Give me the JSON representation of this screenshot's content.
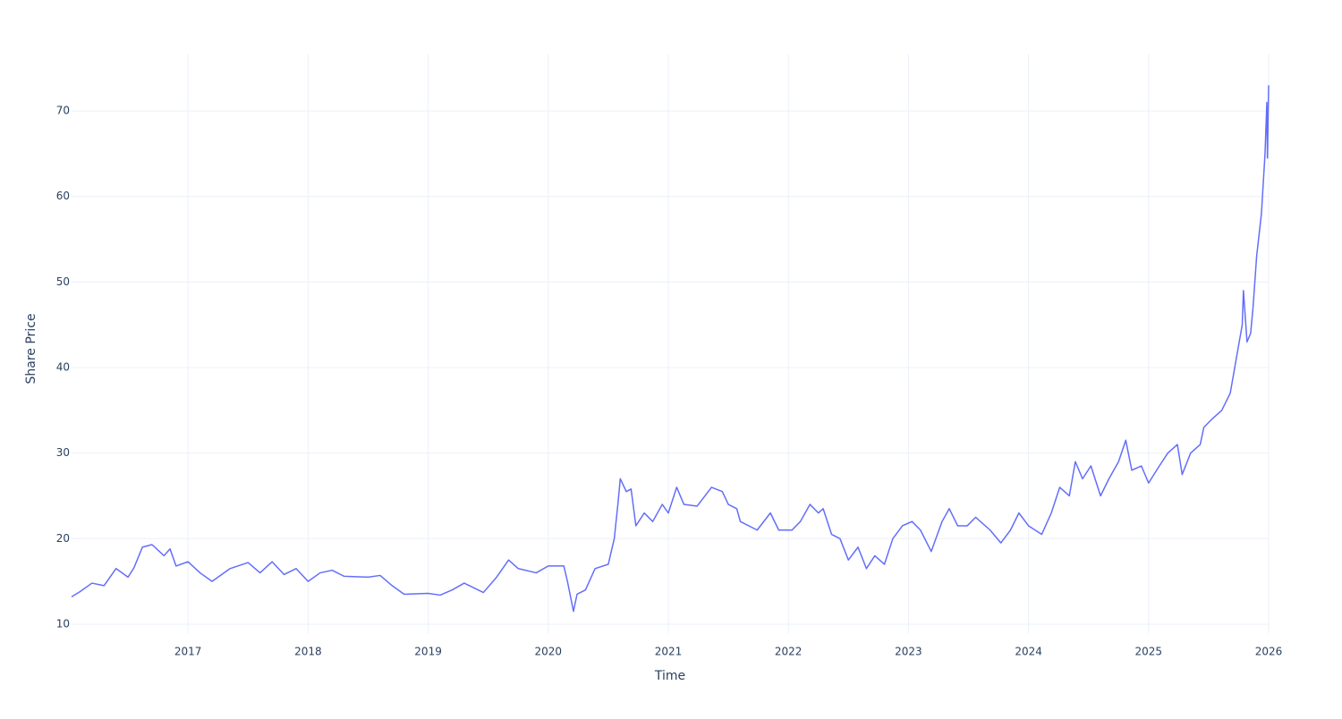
{
  "chart_data": {
    "type": "line",
    "x_label": "Time",
    "y_label": "Share Price",
    "x": [
      2016.03,
      2016.1,
      2016.2,
      2016.3,
      2016.4,
      2016.5,
      2016.55,
      2016.62,
      2016.7,
      2016.8,
      2016.85,
      2016.9,
      2017.0,
      2017.1,
      2017.2,
      2017.35,
      2017.5,
      2017.6,
      2017.7,
      2017.8,
      2017.9,
      2018.0,
      2018.1,
      2018.2,
      2018.3,
      2018.5,
      2018.6,
      2018.7,
      2018.8,
      2019.0,
      2019.1,
      2019.2,
      2019.3,
      2019.46,
      2019.57,
      2019.67,
      2019.75,
      2019.9,
      2020.0,
      2020.13,
      2020.16,
      2020.21,
      2020.24,
      2020.31,
      2020.39,
      2020.5,
      2020.55,
      2020.58,
      2020.6,
      2020.65,
      2020.69,
      2020.73,
      2020.8,
      2020.87,
      2020.95,
      2021.0,
      2021.07,
      2021.13,
      2021.24,
      2021.36,
      2021.45,
      2021.5,
      2021.57,
      2021.6,
      2021.74,
      2021.85,
      2021.92,
      2022.03,
      2022.1,
      2022.18,
      2022.25,
      2022.29,
      2022.36,
      2022.43,
      2022.5,
      2022.58,
      2022.65,
      2022.72,
      2022.8,
      2022.87,
      2022.95,
      2023.03,
      2023.1,
      2023.19,
      2023.28,
      2023.34,
      2023.41,
      2023.49,
      2023.56,
      2023.68,
      2023.77,
      2023.85,
      2023.92,
      2024.0,
      2024.11,
      2024.19,
      2024.26,
      2024.34,
      2024.39,
      2024.45,
      2024.52,
      2024.6,
      2024.67,
      2024.75,
      2024.81,
      2024.86,
      2024.94,
      2025.0,
      2025.09,
      2025.16,
      2025.24,
      2025.28,
      2025.35,
      2025.43,
      2025.46,
      2025.53,
      2025.61,
      2025.68,
      2025.73,
      2025.78,
      2025.79,
      2025.82,
      2025.85,
      2025.87,
      2025.9,
      2025.94,
      2025.97,
      2025.985,
      2025.99,
      2026.0
    ],
    "series": [
      {
        "color": "#636efa",
        "values": [
          13.2,
          13.8,
          14.8,
          14.5,
          16.5,
          15.5,
          16.6,
          19.0,
          19.3,
          18.0,
          18.8,
          16.8,
          17.3,
          16.0,
          15.0,
          16.5,
          17.2,
          16.0,
          17.3,
          15.8,
          16.5,
          15.0,
          16.0,
          16.3,
          15.6,
          15.5,
          15.7,
          14.5,
          13.5,
          13.6,
          13.4,
          14.0,
          14.8,
          13.7,
          15.5,
          17.5,
          16.5,
          16.0,
          16.8,
          16.8,
          15.0,
          11.5,
          13.5,
          14.0,
          16.5,
          17.0,
          20.0,
          24.0,
          27.0,
          25.5,
          25.8,
          21.5,
          23.0,
          22.0,
          24.0,
          23.0,
          26.0,
          24.0,
          23.8,
          26.0,
          25.5,
          24.0,
          23.5,
          22.0,
          21.0,
          23.0,
          21.0,
          21.0,
          22.0,
          24.0,
          23.0,
          23.5,
          20.5,
          20.0,
          17.5,
          19.0,
          16.5,
          18.0,
          17.0,
          20.0,
          21.5,
          22.0,
          21.0,
          18.5,
          22.0,
          23.5,
          21.5,
          21.5,
          22.5,
          21.0,
          19.5,
          21.0,
          23.0,
          21.5,
          20.5,
          23.0,
          26.0,
          25.0,
          29.0,
          27.0,
          28.5,
          25.0,
          27.0,
          29.0,
          31.5,
          28.0,
          28.5,
          26.5,
          28.5,
          30.0,
          31.0,
          27.5,
          30.0,
          31.0,
          33.0,
          34.0,
          35.0,
          37.0,
          41.0,
          45.0,
          49.0,
          43.0,
          44.0,
          47.0,
          53.0,
          58.0,
          65.0,
          71.0,
          64.5,
          73.0
        ]
      }
    ],
    "xlim": [
      2016.03,
      2026.0
    ],
    "ylim": [
      8.95,
      76.7
    ],
    "xticks": [
      2017,
      2018,
      2019,
      2020,
      2021,
      2022,
      2023,
      2024,
      2025,
      2026
    ],
    "yticks": [
      10,
      20,
      30,
      40,
      50,
      60,
      70
    ],
    "grid": true
  }
}
